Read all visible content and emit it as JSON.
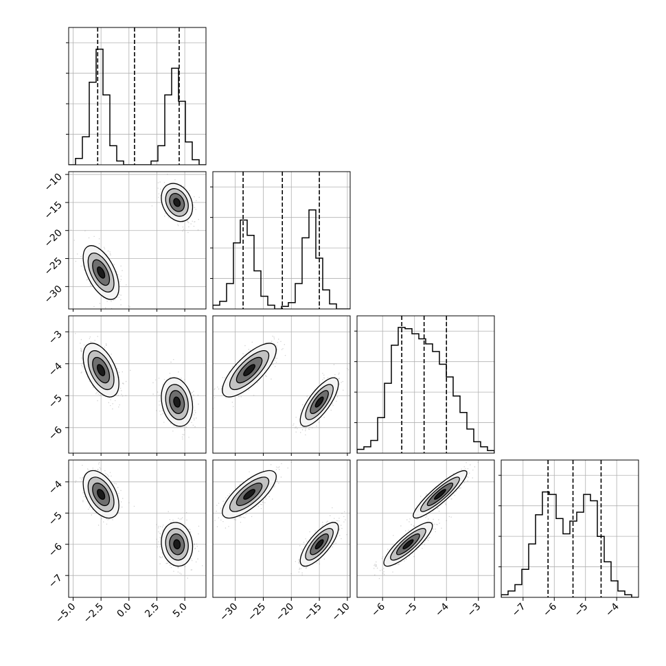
{
  "chart_data": {
    "type": "corner",
    "n_params": 4,
    "ticks": [
      [
        "-5.0",
        "-2.5",
        "0.0",
        "2.5",
        "5.0"
      ],
      [
        "-30",
        "-25",
        "-20",
        "-15",
        "-10"
      ],
      [
        "-6",
        "-5",
        "-4",
        "-3"
      ],
      [
        "-7",
        "-6",
        "-5",
        "-4"
      ]
    ],
    "tick_values": [
      [
        -5,
        -2.5,
        0,
        2.5,
        5
      ],
      [
        -30,
        -25,
        -20,
        -15,
        -10
      ],
      [
        -6,
        -5,
        -4,
        -3
      ],
      [
        -7,
        -6,
        -5,
        -4
      ]
    ],
    "y_ticks": {
      "1": [
        "-10",
        "-15",
        "-20",
        "-25",
        "-30"
      ],
      "2": [
        "-3",
        "-4",
        "-5",
        "-6"
      ],
      "3": [
        "-4",
        "-5",
        "-6",
        "-7"
      ]
    },
    "y_tick_values": {
      "1": [
        -10,
        -15,
        -20,
        -25,
        -30
      ],
      "2": [
        -3,
        -4,
        -5,
        -6
      ],
      "3": [
        -4,
        -5,
        -6,
        -7
      ]
    },
    "ranges": [
      [
        -5.4,
        6.9
      ],
      [
        -34.0,
        -9.5
      ],
      [
        -6.8,
        -2.5
      ],
      [
        -7.7,
        -3.3
      ]
    ],
    "quantiles": [
      [
        -2.8,
        0.5,
        4.5
      ],
      [
        -28.6,
        -21.6,
        -15.0
      ],
      [
        -5.4,
        -4.7,
        -4.0
      ],
      [
        -6.2,
        -5.4,
        -4.5
      ]
    ],
    "histograms": [
      [
        0.0,
        0.05,
        0.22,
        0.65,
        0.91,
        0.55,
        0.15,
        0.03,
        0.0,
        0.0,
        0.0,
        0.0,
        0.03,
        0.15,
        0.55,
        0.76,
        0.5,
        0.18,
        0.04,
        0.0
      ],
      [
        0.03,
        0.06,
        0.2,
        0.52,
        0.7,
        0.58,
        0.3,
        0.1,
        0.03,
        0.0,
        0.02,
        0.05,
        0.2,
        0.56,
        0.78,
        0.4,
        0.15,
        0.04,
        0.0,
        0.0
      ],
      [
        0.03,
        0.05,
        0.1,
        0.28,
        0.55,
        0.85,
        0.99,
        0.98,
        0.94,
        0.9,
        0.86,
        0.8,
        0.7,
        0.6,
        0.45,
        0.32,
        0.19,
        0.09,
        0.05,
        0.02
      ],
      [
        0.02,
        0.05,
        0.1,
        0.22,
        0.42,
        0.65,
        0.83,
        0.81,
        0.62,
        0.5,
        0.6,
        0.67,
        0.81,
        0.76,
        0.48,
        0.28,
        0.13,
        0.05,
        0.02,
        0.0
      ]
    ],
    "modes": [
      [
        [
          -2.5,
          0.48
        ],
        [
          4.3,
          0.52
        ]
      ],
      [
        [
          -27.5,
          0.5
        ],
        [
          -15.0,
          0.5
        ]
      ],
      [
        [
          -4.2,
          0.55
        ],
        [
          -5.2,
          0.45
        ]
      ],
      [
        [
          -4.4,
          0.55
        ],
        [
          -6.0,
          0.45
        ]
      ]
    ],
    "widths": [
      [
        0.8,
        0.7
      ],
      [
        2.4,
        1.7
      ],
      [
        0.42,
        0.38
      ],
      [
        0.38,
        0.35
      ]
    ],
    "correlations": {
      "1-0": [
        -0.55,
        -0.25
      ],
      "2-0": [
        -0.5,
        -0.2
      ],
      "3-0": [
        -0.45,
        -0.1
      ],
      "2-1": [
        0.75,
        0.75
      ],
      "3-1": [
        0.75,
        0.75
      ],
      "3-2": [
        0.9,
        0.85
      ]
    }
  }
}
